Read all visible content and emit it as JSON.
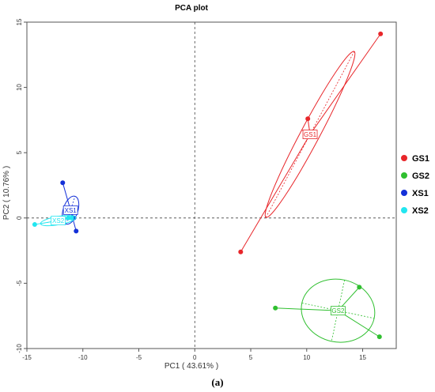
{
  "chart_data": {
    "type": "scatter",
    "title": "PCA plot",
    "xlabel": "PC1 ( 43.61% )",
    "ylabel": "PC2 ( 10.76% )",
    "caption": "(a)",
    "xlim": [
      -15,
      18
    ],
    "ylim": [
      -10,
      15
    ],
    "xticks": [
      -15,
      -10,
      -5,
      0,
      5,
      10,
      15
    ],
    "yticks": [
      -10,
      -5,
      0,
      5,
      10,
      15
    ],
    "reference_lines": {
      "x": 0,
      "y": 0,
      "style": "dashed"
    },
    "legend_position": "right",
    "series": [
      {
        "name": "GS1",
        "color": "#e8262a",
        "points": [
          [
            16.6,
            14.1
          ],
          [
            10.1,
            7.6
          ],
          [
            4.1,
            -2.6
          ]
        ],
        "centroid": [
          10.3,
          6.4
        ],
        "ellipse": {
          "center": [
            10.3,
            6.4
          ],
          "rx": 8.4,
          "ry": 0.45,
          "angle_deg": 62
        }
      },
      {
        "name": "GS2",
        "color": "#2fbf2f",
        "points": [
          [
            7.2,
            -6.9
          ],
          [
            14.7,
            -5.3
          ],
          [
            16.5,
            -9.1
          ]
        ],
        "centroid": [
          12.8,
          -7.1
        ],
        "ellipse": {
          "center": [
            12.8,
            -7.1
          ],
          "rx": 3.3,
          "ry": 1.5,
          "angle_deg": -12
        }
      },
      {
        "name": "XS1",
        "color": "#1430d8",
        "points": [
          [
            -11.8,
            2.7
          ],
          [
            -10.8,
            0.0
          ],
          [
            -10.6,
            -1.0
          ]
        ],
        "centroid": [
          -11.1,
          0.6
        ],
        "ellipse": {
          "center": [
            -11.1,
            0.6
          ],
          "rx": 1.3,
          "ry": 0.35,
          "angle_deg": 72
        }
      },
      {
        "name": "XS2",
        "color": "#22e6f0",
        "points": [
          [
            -14.3,
            -0.5
          ],
          [
            -11.3,
            0.0
          ],
          [
            -11.0,
            0.0
          ]
        ],
        "centroid": [
          -12.2,
          -0.2
        ],
        "ellipse": {
          "center": [
            -12.2,
            -0.2
          ],
          "rx": 1.6,
          "ry": 0.2,
          "angle_deg": 10
        }
      }
    ]
  }
}
